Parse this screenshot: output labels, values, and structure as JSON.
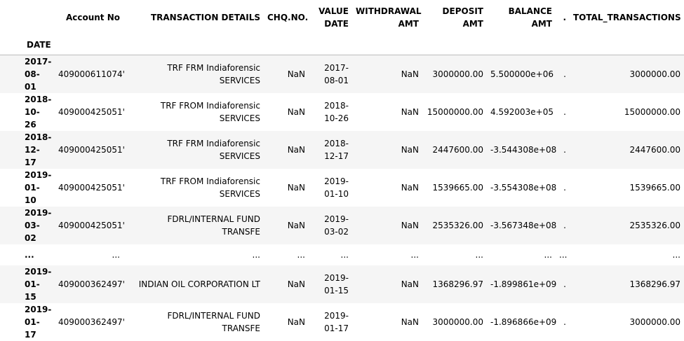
{
  "table": {
    "index_name": "DATE",
    "columns": [
      "Account No",
      "TRANSACTION DETAILS",
      "CHQ.NO.",
      "VALUE DATE",
      "WITHDRAWAL AMT",
      "DEPOSIT AMT",
      "BALANCE AMT",
      ".",
      "TOTAL_TRANSACTIONS"
    ],
    "rows": [
      {
        "index": "2017-08-01",
        "cells": [
          "409000611074'",
          "TRF FRM Indiaforensic SERVICES",
          "NaN",
          "2017-08-01",
          "NaN",
          "3000000.00",
          "5.500000e+06",
          ".",
          "3000000.00"
        ]
      },
      {
        "index": "2018-10-26",
        "cells": [
          "409000425051'",
          "TRF FROM Indiaforensic SERVICES",
          "NaN",
          "2018-10-26",
          "NaN",
          "15000000.00",
          "4.592003e+05",
          ".",
          "15000000.00"
        ]
      },
      {
        "index": "2018-12-17",
        "cells": [
          "409000425051'",
          "TRF FRM Indiaforensic SERVICES",
          "NaN",
          "2018-12-17",
          "NaN",
          "2447600.00",
          "-3.544308e+08",
          ".",
          "2447600.00"
        ]
      },
      {
        "index": "2019-01-10",
        "cells": [
          "409000425051'",
          "TRF FROM Indiaforensic SERVICES",
          "NaN",
          "2019-01-10",
          "NaN",
          "1539665.00",
          "-3.554308e+08",
          ".",
          "1539665.00"
        ]
      },
      {
        "index": "2019-03-02",
        "cells": [
          "409000425051'",
          "FDRL/INTERNAL FUND TRANSFE",
          "NaN",
          "2019-03-02",
          "NaN",
          "2535326.00",
          "-3.567348e+08",
          ".",
          "2535326.00"
        ]
      },
      {
        "index": "...",
        "cells": [
          "...",
          "...",
          "...",
          "...",
          "...",
          "...",
          "...",
          "...",
          "..."
        ]
      },
      {
        "index": "2019-01-15",
        "cells": [
          "409000362497'",
          "INDIAN OIL CORPORATION LT",
          "NaN",
          "2019-01-15",
          "NaN",
          "1368296.97",
          "-1.899861e+09",
          ".",
          "1368296.97"
        ]
      },
      {
        "index": "2019-01-17",
        "cells": [
          "409000362497'",
          "FDRL/INTERNAL FUND TRANSFE",
          "NaN",
          "2019-01-17",
          "NaN",
          "3000000.00",
          "-1.896866e+09",
          ".",
          "3000000.00"
        ]
      }
    ]
  }
}
